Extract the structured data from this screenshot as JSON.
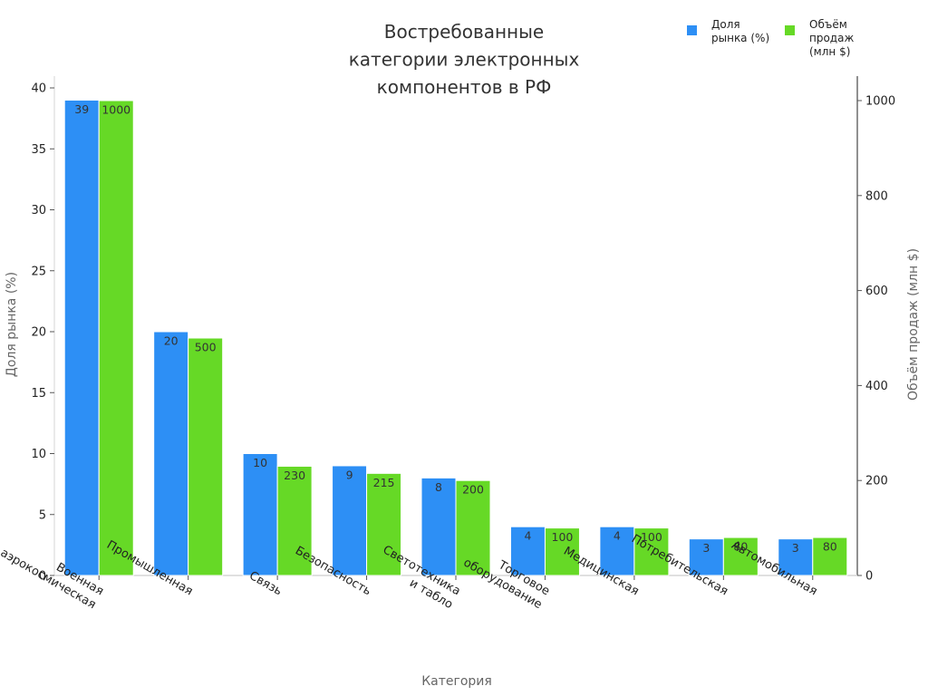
{
  "chart_data": {
    "type": "bar",
    "title": [
      "Востребованные",
      "категории электронных",
      "компонентов в РФ"
    ],
    "xlabel": "Категория",
    "ylabel_left": "Доля рынка (%)",
    "ylabel_right": "Объём продаж (млн $)",
    "categories": [
      [
        "Военная",
        "и аэрокосмическая"
      ],
      [
        "Промышленная"
      ],
      [
        "Связь"
      ],
      [
        "Безопасность"
      ],
      [
        "Светотехника",
        "и табло"
      ],
      [
        "Торговое",
        "оборудование"
      ],
      [
        "Медицинская"
      ],
      [
        "Потребительская"
      ],
      [
        "Автомобильная"
      ]
    ],
    "series": [
      {
        "name": [
          "Доля",
          "рынка (%)"
        ],
        "axis": "left",
        "color": "#2d8ff5",
        "values": [
          39,
          20,
          10,
          9,
          8,
          4,
          4,
          3,
          3
        ]
      },
      {
        "name": [
          "Объём",
          "продаж",
          "(млн $)"
        ],
        "axis": "right",
        "color": "#66d926",
        "values": [
          1000,
          500,
          230,
          215,
          200,
          100,
          100,
          80,
          80
        ]
      }
    ],
    "ylim_left": [
      0,
      40
    ],
    "yticks_left": [
      0,
      5,
      10,
      15,
      20,
      25,
      30,
      35,
      40
    ],
    "ylim_right": [
      0,
      1000
    ],
    "yticks_right": [
      0,
      200,
      400,
      600,
      800,
      1000
    ],
    "legend": "top-right",
    "grid": false
  }
}
